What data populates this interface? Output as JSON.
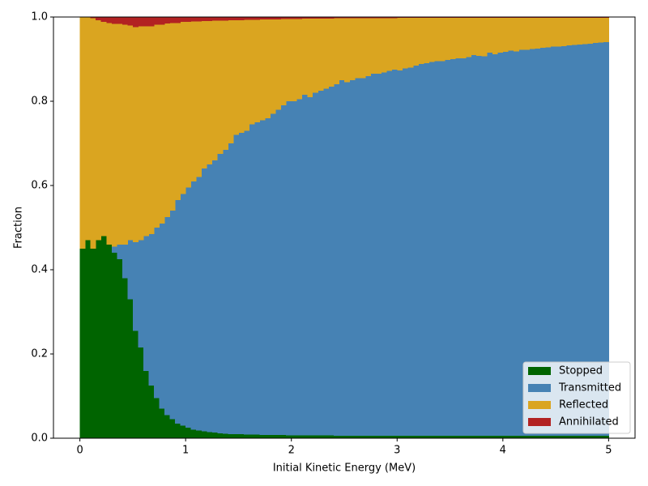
{
  "chart_data": {
    "type": "stacked_histogram",
    "xlabel": "Initial Kinetic Energy (MeV)",
    "ylabel": "Fraction",
    "bins": [
      0,
      0.05,
      0.1,
      0.15,
      0.2,
      0.25,
      0.3,
      0.35,
      0.4,
      0.45,
      0.5,
      0.55,
      0.6,
      0.65,
      0.7,
      0.75,
      0.8,
      0.85,
      0.9,
      0.95,
      1,
      1.05,
      1.1,
      1.15,
      1.2,
      1.25,
      1.3,
      1.35,
      1.4,
      1.45,
      1.5,
      1.55,
      1.6,
      1.65,
      1.7,
      1.75,
      1.8,
      1.85,
      1.9,
      1.95,
      2,
      2.05,
      2.1,
      2.15,
      2.2,
      2.25,
      2.3,
      2.35,
      2.4,
      2.45,
      2.5,
      2.55,
      2.6,
      2.65,
      2.7,
      2.75,
      2.8,
      2.85,
      2.9,
      2.95,
      3,
      3.05,
      3.1,
      3.15,
      3.2,
      3.25,
      3.3,
      3.35,
      3.4,
      3.45,
      3.5,
      3.55,
      3.6,
      3.65,
      3.7,
      3.75,
      3.8,
      3.85,
      3.9,
      3.95,
      4,
      4.05,
      4.1,
      4.15,
      4.2,
      4.25,
      4.3,
      4.35,
      4.4,
      4.45,
      4.5,
      4.55,
      4.6,
      4.65,
      4.7,
      4.75,
      4.8,
      4.85,
      4.9,
      4.95,
      5
    ],
    "series": [
      {
        "name": "Stopped",
        "color": "#006400",
        "values": [
          0.45,
          0.47,
          0.45,
          0.47,
          0.48,
          0.46,
          0.44,
          0.425,
          0.38,
          0.33,
          0.255,
          0.215,
          0.16,
          0.125,
          0.095,
          0.07,
          0.055,
          0.045,
          0.035,
          0.03,
          0.025,
          0.02,
          0.018,
          0.016,
          0.014,
          0.013,
          0.012,
          0.011,
          0.01,
          0.01,
          0.01,
          0.009,
          0.009,
          0.009,
          0.008,
          0.008,
          0.008,
          0.008,
          0.008,
          0.007,
          0.007,
          0.007,
          0.007,
          0.007,
          0.007,
          0.007,
          0.007,
          0.007,
          0.006,
          0.006,
          0.006,
          0.006,
          0.006,
          0.006,
          0.006,
          0.006,
          0.006,
          0.006,
          0.006,
          0.006,
          0.006,
          0.006,
          0.006,
          0.006,
          0.006,
          0.006,
          0.006,
          0.006,
          0.006,
          0.006,
          0.006,
          0.006,
          0.006,
          0.006,
          0.006,
          0.006,
          0.006,
          0.006,
          0.006,
          0.006,
          0.006,
          0.006,
          0.006,
          0.006,
          0.006,
          0.006,
          0.006,
          0.006,
          0.006,
          0.006,
          0.006,
          0.006,
          0.006,
          0.006,
          0.006,
          0.006,
          0.006,
          0.006,
          0.006,
          0.006
        ]
      },
      {
        "name": "Transmitted",
        "color": "#4682b4",
        "values": [
          0,
          0,
          0,
          0,
          0,
          0,
          0.015,
          0.035,
          0.08,
          0.14,
          0.21,
          0.255,
          0.32,
          0.36,
          0.405,
          0.44,
          0.47,
          0.495,
          0.53,
          0.55,
          0.57,
          0.59,
          0.602,
          0.624,
          0.636,
          0.647,
          0.663,
          0.674,
          0.69,
          0.71,
          0.715,
          0.721,
          0.736,
          0.741,
          0.747,
          0.752,
          0.762,
          0.772,
          0.782,
          0.793,
          0.793,
          0.798,
          0.808,
          0.803,
          0.813,
          0.818,
          0.823,
          0.828,
          0.834,
          0.844,
          0.839,
          0.844,
          0.849,
          0.849,
          0.854,
          0.859,
          0.859,
          0.862,
          0.866,
          0.869,
          0.867,
          0.872,
          0.874,
          0.879,
          0.882,
          0.884,
          0.887,
          0.889,
          0.889,
          0.892,
          0.894,
          0.896,
          0.896,
          0.899,
          0.904,
          0.902,
          0.901,
          0.909,
          0.906,
          0.909,
          0.911,
          0.914,
          0.912,
          0.916,
          0.916,
          0.918,
          0.919,
          0.921,
          0.922,
          0.924,
          0.924,
          0.925,
          0.927,
          0.928,
          0.929,
          0.93,
          0.931,
          0.932,
          0.933,
          0.934
        ]
      },
      {
        "name": "Reflected",
        "color": "#daa520",
        "values": [
          0.55,
          0.53,
          0.547,
          0.522,
          0.508,
          0.526,
          0.529,
          0.524,
          0.522,
          0.51,
          0.511,
          0.508,
          0.498,
          0.493,
          0.482,
          0.472,
          0.46,
          0.446,
          0.421,
          0.408,
          0.393,
          0.379,
          0.369,
          0.35,
          0.34,
          0.331,
          0.316,
          0.306,
          0.292,
          0.272,
          0.267,
          0.263,
          0.248,
          0.243,
          0.239,
          0.234,
          0.224,
          0.214,
          0.205,
          0.195,
          0.195,
          0.19,
          0.181,
          0.186,
          0.176,
          0.171,
          0.166,
          0.161,
          0.157,
          0.147,
          0.152,
          0.147,
          0.142,
          0.142,
          0.137,
          0.132,
          0.132,
          0.129,
          0.125,
          0.122,
          0.125,
          0.12,
          0.118,
          0.113,
          0.11,
          0.108,
          0.105,
          0.103,
          0.103,
          0.1,
          0.098,
          0.096,
          0.096,
          0.093,
          0.088,
          0.09,
          0.091,
          0.083,
          0.086,
          0.083,
          0.081,
          0.078,
          0.08,
          0.076,
          0.076,
          0.074,
          0.073,
          0.071,
          0.07,
          0.068,
          0.068,
          0.067,
          0.065,
          0.064,
          0.063,
          0.062,
          0.061,
          0.06,
          0.059,
          0.058
        ]
      },
      {
        "name": "Annihilated",
        "color": "#b22222",
        "values": [
          0,
          0,
          0.003,
          0.008,
          0.012,
          0.014,
          0.016,
          0.016,
          0.018,
          0.02,
          0.024,
          0.022,
          0.022,
          0.022,
          0.018,
          0.018,
          0.015,
          0.014,
          0.014,
          0.012,
          0.012,
          0.011,
          0.011,
          0.01,
          0.01,
          0.009,
          0.009,
          0.009,
          0.008,
          0.008,
          0.008,
          0.007,
          0.007,
          0.007,
          0.006,
          0.006,
          0.006,
          0.006,
          0.005,
          0.005,
          0.005,
          0.005,
          0.004,
          0.004,
          0.004,
          0.004,
          0.004,
          0.004,
          0.003,
          0.003,
          0.003,
          0.003,
          0.003,
          0.003,
          0.003,
          0.003,
          0.003,
          0.003,
          0.003,
          0.003,
          0.002,
          0.002,
          0.002,
          0.002,
          0.002,
          0.002,
          0.002,
          0.002,
          0.002,
          0.002,
          0.002,
          0.002,
          0.002,
          0.002,
          0.002,
          0.002,
          0.002,
          0.002,
          0.002,
          0.002,
          0.002,
          0.002,
          0.002,
          0.002,
          0.002,
          0.002,
          0.002,
          0.002,
          0.002,
          0.002,
          0.002,
          0.002,
          0.002,
          0.002,
          0.002,
          0.002,
          0.002,
          0.002,
          0.002,
          0.002
        ]
      }
    ],
    "xlim": [
      -0.25,
      5.25
    ],
    "xticks": [
      0,
      1,
      2,
      3,
      4,
      5
    ],
    "ylim": [
      0,
      1
    ],
    "yticks": [
      {
        "value": 0,
        "label": "0.0"
      },
      0.2,
      0.4,
      0.6,
      0.8,
      {
        "value": 1,
        "label": "1.0"
      }
    ],
    "legend": "lower right"
  }
}
